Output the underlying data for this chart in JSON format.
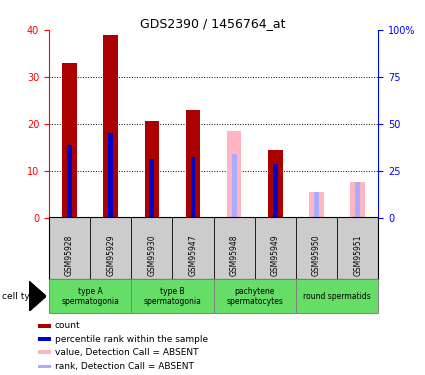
{
  "title": "GDS2390 / 1456764_at",
  "samples": [
    "GSM95928",
    "GSM95929",
    "GSM95930",
    "GSM95947",
    "GSM95948",
    "GSM95949",
    "GSM95950",
    "GSM95951"
  ],
  "count_values": [
    33,
    39,
    20.5,
    23,
    0,
    14.5,
    0,
    0
  ],
  "absent_count_values": [
    0,
    0,
    0,
    0,
    18.5,
    0,
    5.5,
    7.5
  ],
  "blue_rank_values": [
    15.5,
    18,
    12.5,
    13,
    0,
    11.5,
    0,
    0
  ],
  "absent_rank_values": [
    0,
    0,
    0,
    0,
    13.5,
    0,
    5.5,
    7.5
  ],
  "ylim_left": [
    0,
    40
  ],
  "ylim_right": [
    0,
    100
  ],
  "yticks_left": [
    0,
    10,
    20,
    30,
    40
  ],
  "yticks_right": [
    0,
    25,
    50,
    75,
    100
  ],
  "ytick_labels_right": [
    "0",
    "25",
    "50",
    "75",
    "100%"
  ],
  "bar_width": 0.35,
  "rank_bar_width": 0.12,
  "count_color": "#AA0000",
  "rank_blue_color": "#0000CC",
  "absent_count_color": "#FFB6C1",
  "absent_rank_color": "#AAAAFF",
  "axis_left_color": "red",
  "axis_right_color": "blue",
  "bg_sample_color": "#CCCCCC",
  "green_color": "#66DD66",
  "ct_groups": [
    [
      0,
      1,
      "type A\nspermatogonia"
    ],
    [
      2,
      3,
      "type B\nspermatogonia"
    ],
    [
      4,
      5,
      "pachytene\nspermatocytes"
    ],
    [
      6,
      7,
      "round spermatids"
    ]
  ],
  "legend_items": [
    {
      "color": "#AA0000",
      "label": "count"
    },
    {
      "color": "#0000CC",
      "label": "percentile rank within the sample"
    },
    {
      "color": "#FFB6C1",
      "label": "value, Detection Call = ABSENT"
    },
    {
      "color": "#AAAAFF",
      "label": "rank, Detection Call = ABSENT"
    }
  ]
}
